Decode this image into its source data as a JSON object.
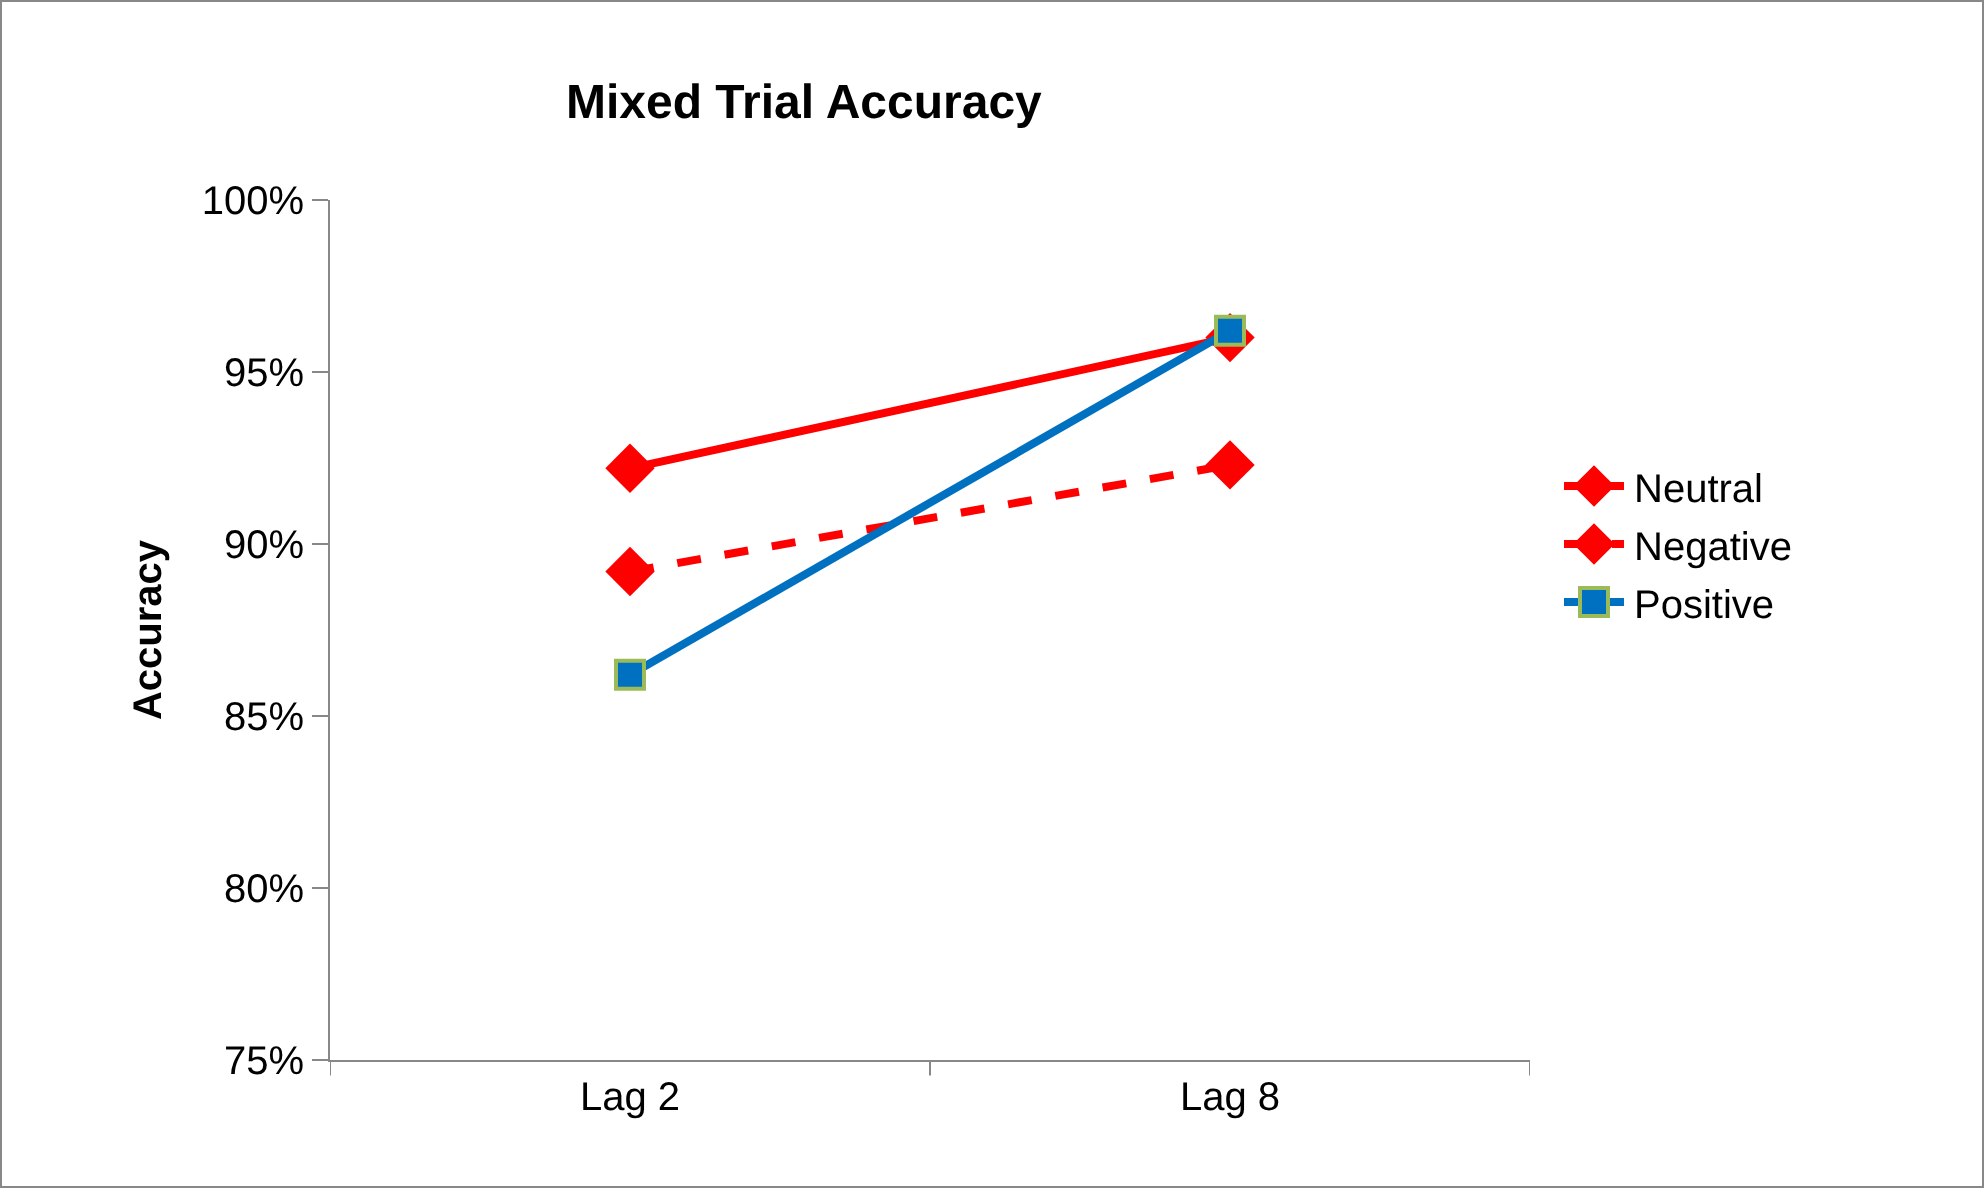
{
  "chart_data": {
    "type": "line",
    "title": "Mixed Trial Accuracy",
    "ylabel": "Accuracy",
    "categories": [
      "Lag 2",
      "Lag 8"
    ],
    "series": [
      {
        "name": "Neutral",
        "color": "#ff0000",
        "values": [
          92.2,
          96.0
        ],
        "marker": "diamond",
        "line_style": "solid"
      },
      {
        "name": "Negative",
        "color": "#ff0000",
        "values": [
          89.2,
          92.3
        ],
        "marker": "diamond",
        "line_style": "dashed"
      },
      {
        "name": "Positive",
        "color": "#0070c0",
        "values": [
          86.2,
          96.2
        ],
        "marker": "square",
        "line_style": "solid"
      }
    ],
    "ylim": [
      75,
      100
    ],
    "yticks": [
      {
        "value": 75,
        "label": "75%"
      },
      {
        "value": 80,
        "label": "80%"
      },
      {
        "value": 85,
        "label": "85%"
      },
      {
        "value": 90,
        "label": "90%"
      },
      {
        "value": 95,
        "label": "95%"
      },
      {
        "value": 100,
        "label": "100%"
      }
    ],
    "grid": false,
    "legend": "right"
  }
}
